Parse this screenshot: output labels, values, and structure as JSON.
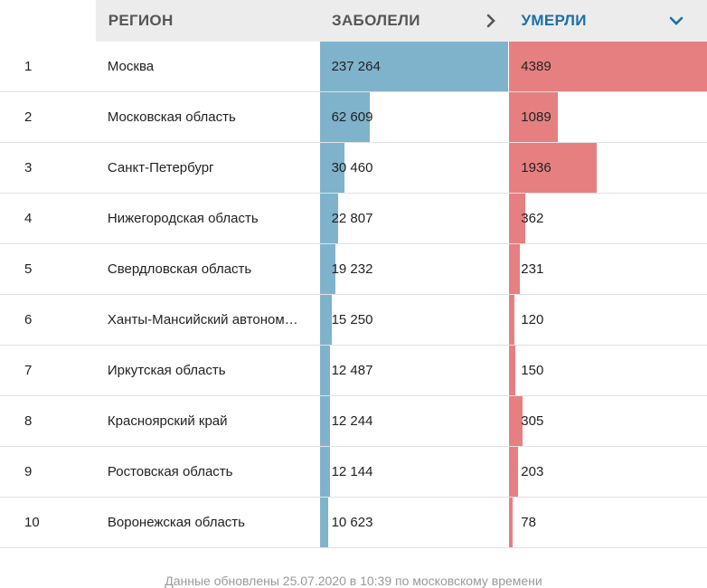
{
  "header": {
    "region": "РЕГИОН",
    "cases": "ЗАБОЛЕЛИ",
    "deaths": "УМЕРЛИ"
  },
  "colors": {
    "cases_bar": "#7fb3cc",
    "deaths_bar": "#e68080",
    "active_header": "#1a6ea8"
  },
  "max": {
    "cases": 237264,
    "deaths": 4389
  },
  "rows": [
    {
      "num": "1",
      "region": "Москва",
      "cases": "237 264",
      "deaths": "4389",
      "cases_n": 237264,
      "deaths_n": 4389
    },
    {
      "num": "2",
      "region": "Московская область",
      "cases": "62 609",
      "deaths": "1089",
      "cases_n": 62609,
      "deaths_n": 1089
    },
    {
      "num": "3",
      "region": "Санкт-Петербург",
      "cases": "30 460",
      "deaths": "1936",
      "cases_n": 30460,
      "deaths_n": 1936
    },
    {
      "num": "4",
      "region": "Нижегородская область",
      "cases": "22 807",
      "deaths": "362",
      "cases_n": 22807,
      "deaths_n": 362
    },
    {
      "num": "5",
      "region": "Свердловская область",
      "cases": "19 232",
      "deaths": "231",
      "cases_n": 19232,
      "deaths_n": 231
    },
    {
      "num": "6",
      "region": "Ханты-Мансийский автоном…",
      "cases": "15 250",
      "deaths": "120",
      "cases_n": 15250,
      "deaths_n": 120
    },
    {
      "num": "7",
      "region": "Иркутская область",
      "cases": "12 487",
      "deaths": "150",
      "cases_n": 12487,
      "deaths_n": 150
    },
    {
      "num": "8",
      "region": "Красноярский край",
      "cases": "12 244",
      "deaths": "305",
      "cases_n": 12244,
      "deaths_n": 305
    },
    {
      "num": "9",
      "region": "Ростовская область",
      "cases": "12 144",
      "deaths": "203",
      "cases_n": 12144,
      "deaths_n": 203
    },
    {
      "num": "10",
      "region": "Воронежская область",
      "cases": "10 623",
      "deaths": "78",
      "cases_n": 10623,
      "deaths_n": 78
    }
  ],
  "footer": "Данные обновлены 25.07.2020 в 10:39 по московскому времени"
}
